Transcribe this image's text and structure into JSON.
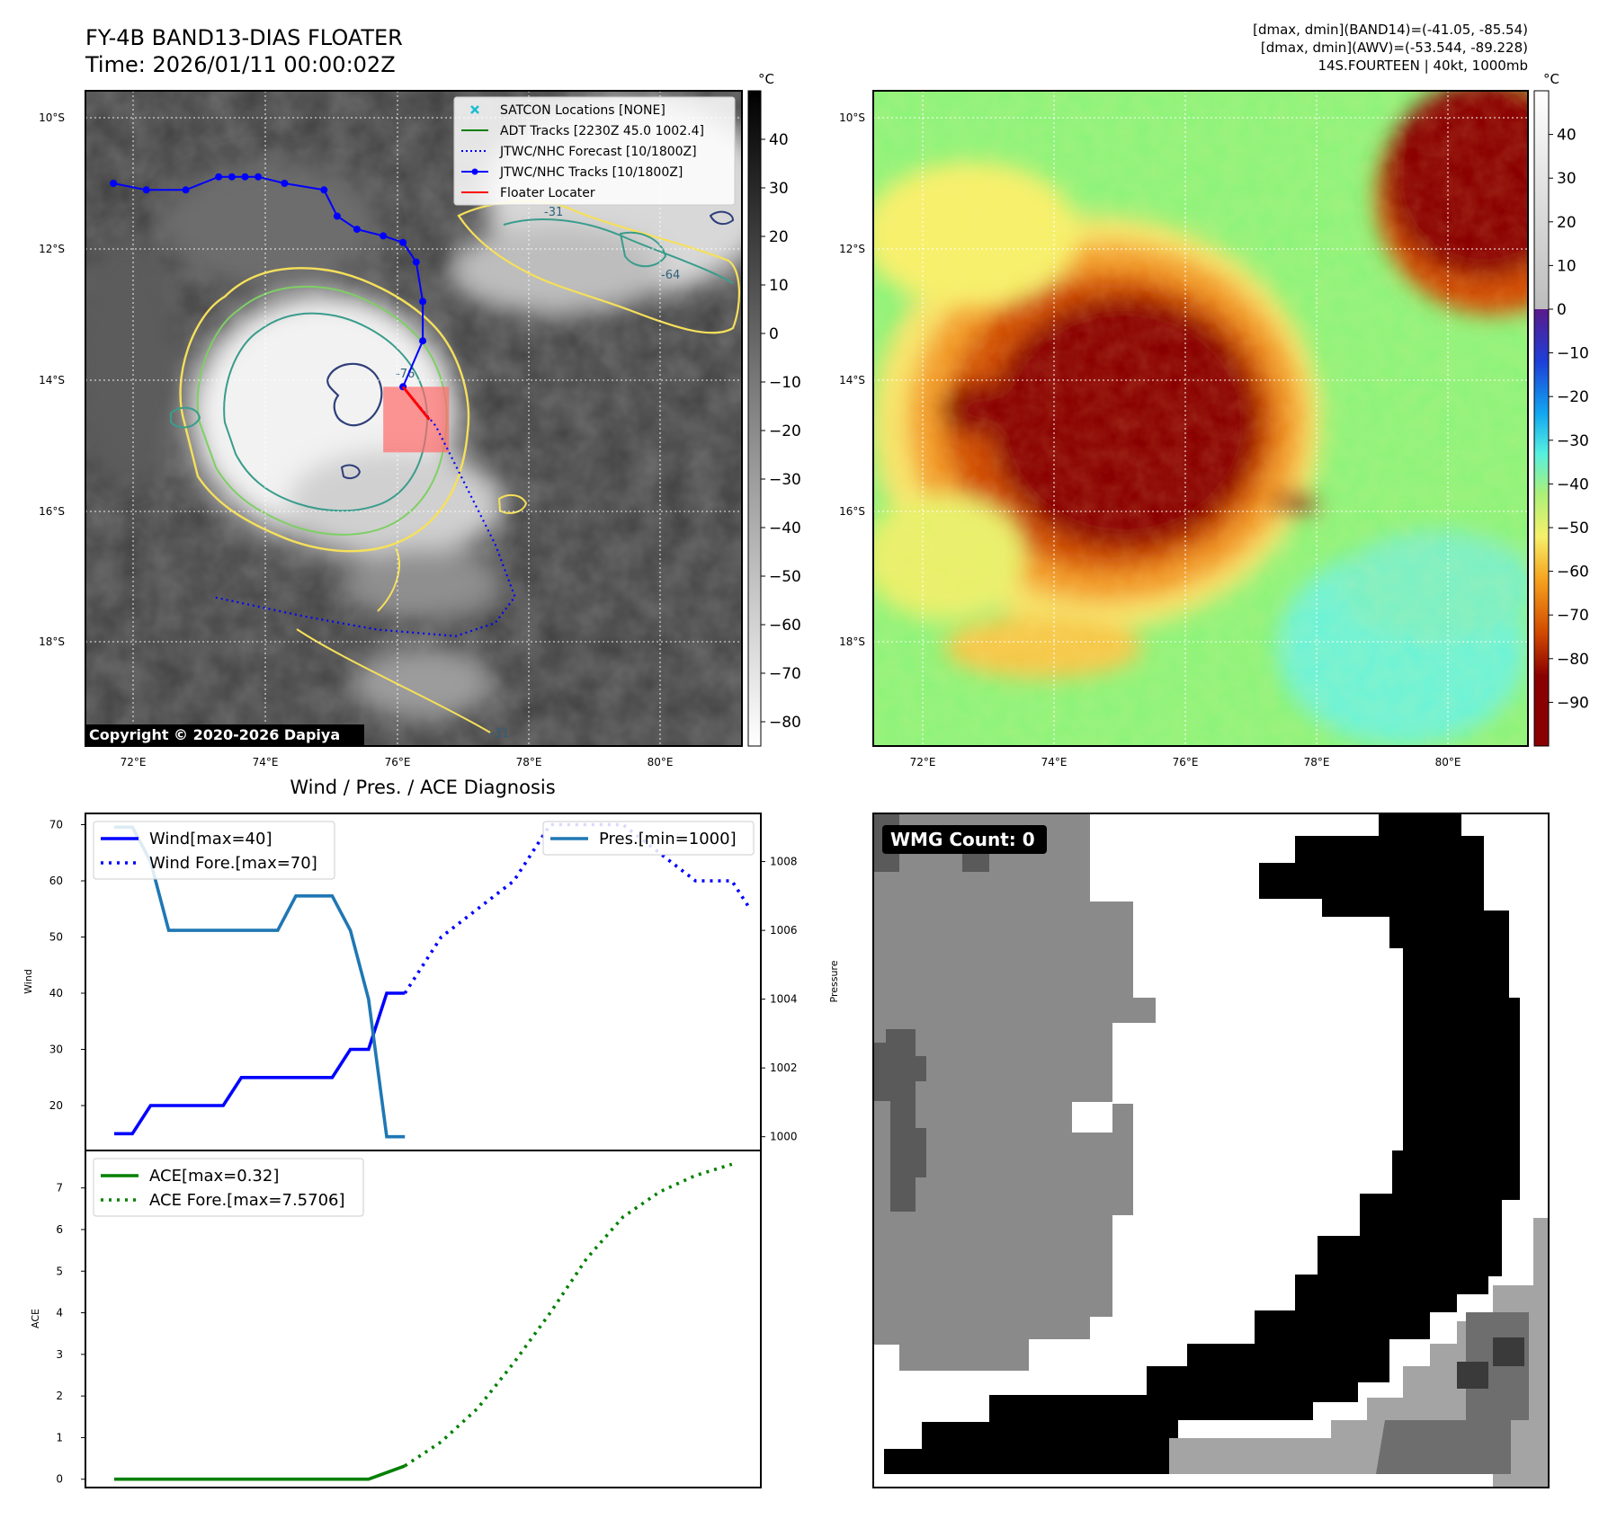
{
  "header": {
    "title_line1": "FY-4B BAND13-DIAS FLOATER",
    "title_line2": "Time: 2026/01/11 00:00:02Z",
    "info_line1": "[dmax, dmin](BAND14)=(-41.05, -85.54)",
    "info_line2": "[dmax, dmin](AWV)=(-53.544, -89.228)",
    "info_line3": "14S.FOURTEEN | 40kt, 1000mb"
  },
  "ir_panel": {
    "lon_labels": [
      "72°E",
      "74°E",
      "76°E",
      "78°E",
      "80°E"
    ],
    "lat_labels": [
      "10°S",
      "12°S",
      "14°S",
      "16°S",
      "18°S"
    ],
    "copyright": "Copyright © 2020-2026 Dapiya",
    "contour_labels": [
      "-31",
      "-64",
      "-76"
    ],
    "legend": [
      {
        "label": "SATCON Locations [NONE]",
        "color": "#17becf",
        "style": "marker-x"
      },
      {
        "label": "ADT Tracks [2230Z 45.0 1002.4]",
        "color": "#008000",
        "style": "line"
      },
      {
        "label": "JTWC/NHC Forecast [10/1800Z]",
        "color": "#0000ff",
        "style": "dotted"
      },
      {
        "label": "JTWC/NHC Tracks [10/1800Z]",
        "color": "#0000ff",
        "style": "line-marker"
      },
      {
        "label": "Floater Locater",
        "color": "#ff0000",
        "style": "line"
      }
    ],
    "track_points": [
      [
        71.7,
        -11.0
      ],
      [
        72.2,
        -11.1
      ],
      [
        72.8,
        -11.1
      ],
      [
        73.3,
        -10.9
      ],
      [
        73.5,
        -10.9
      ],
      [
        73.7,
        -10.9
      ],
      [
        73.9,
        -10.9
      ],
      [
        74.3,
        -11.0
      ],
      [
        74.9,
        -11.1
      ],
      [
        75.1,
        -11.5
      ],
      [
        75.4,
        -11.7
      ],
      [
        75.8,
        -11.8
      ],
      [
        76.1,
        -11.9
      ],
      [
        76.3,
        -12.2
      ],
      [
        76.4,
        -12.8
      ],
      [
        76.4,
        -13.4
      ],
      [
        76.1,
        -14.1
      ]
    ],
    "forecast_points": [
      [
        76.1,
        -14.1
      ],
      [
        76.6,
        -14.7
      ],
      [
        76.9,
        -15.3
      ],
      [
        77.2,
        -15.9
      ],
      [
        77.5,
        -16.5
      ],
      [
        77.8,
        -17.3
      ],
      [
        77.5,
        -17.7
      ],
      [
        76.9,
        -17.9
      ],
      [
        75.7,
        -17.8
      ],
      [
        74.6,
        -17.6
      ],
      [
        73.2,
        -17.3
      ]
    ],
    "floater_segment": [
      [
        76.1,
        -14.1
      ],
      [
        76.5,
        -14.6
      ]
    ],
    "floater_box": {
      "lon": [
        75.8,
        76.8
      ],
      "lat": [
        -14.1,
        -15.1
      ]
    },
    "colorbar": {
      "unit": "°C",
      "ticks": [
        40,
        30,
        20,
        10,
        0,
        -10,
        -20,
        -30,
        -40,
        -50,
        -60,
        -70,
        -80
      ]
    }
  },
  "awv_panel": {
    "lon_labels": [
      "72°E",
      "74°E",
      "76°E",
      "78°E",
      "80°E"
    ],
    "lat_labels": [
      "10°S",
      "12°S",
      "14°S",
      "16°S",
      "18°S"
    ],
    "colorbar": {
      "unit": "°C",
      "ticks": [
        40,
        30,
        20,
        10,
        0,
        -10,
        -20,
        -30,
        -40,
        -50,
        -60,
        -70,
        -80,
        -90
      ]
    }
  },
  "wmg_panel": {
    "count_label": "WMG Count: 0"
  },
  "chart_data": [
    {
      "type": "line",
      "title": "Wind / Pres. / ACE Diagnosis",
      "ylabel": "Wind",
      "ylabel_right": "Pressure",
      "ylim": [
        12,
        72
      ],
      "ylim_right": [
        999.6,
        1009.4
      ],
      "yticks": [
        20,
        30,
        40,
        50,
        60,
        70
      ],
      "yticks_right": [
        1000,
        1002,
        1004,
        1006,
        1008
      ],
      "x_count": 18,
      "series": [
        {
          "name": "Wind[max=40]",
          "color": "#0000ff",
          "style": "solid",
          "axis": "left",
          "x": [
            0,
            0.5,
            1,
            2,
            3,
            3.5,
            4,
            5,
            6,
            6.5,
            7,
            7.5,
            8
          ],
          "values": [
            15,
            15,
            20,
            20,
            20,
            25,
            25,
            25,
            25,
            30,
            30,
            40,
            40
          ]
        },
        {
          "name": "Wind Fore.[max=70]",
          "color": "#0000ff",
          "style": "dotted",
          "axis": "left",
          "x": [
            8,
            9,
            10,
            11,
            12,
            13,
            14,
            15,
            16,
            17,
            17.5
          ],
          "values": [
            40,
            50,
            55,
            60,
            70,
            70,
            70,
            65,
            60,
            60,
            55
          ]
        },
        {
          "name": "Pres.[min=1000]",
          "color": "#1f77b4",
          "style": "solid",
          "axis": "right",
          "x": [
            0,
            0.5,
            1,
            1.5,
            2,
            3,
            4,
            4.5,
            5,
            5.5,
            6,
            6.5,
            7,
            7.5,
            8
          ],
          "values": [
            1009,
            1009,
            1008,
            1006,
            1006,
            1006,
            1006,
            1006,
            1007,
            1007,
            1007,
            1006,
            1004,
            1000,
            1000
          ]
        }
      ],
      "legend_left_position": "upper-left",
      "legend_right_position": "upper-right"
    },
    {
      "type": "line",
      "ylabel": "ACE",
      "ylim": [
        -0.2,
        7.9
      ],
      "yticks": [
        0,
        1,
        2,
        3,
        4,
        5,
        6,
        7
      ],
      "x_count": 18,
      "series": [
        {
          "name": "ACE[max=0.32]",
          "color": "#008000",
          "style": "solid",
          "x": [
            0,
            7,
            8
          ],
          "values": [
            0,
            0,
            0.32
          ]
        },
        {
          "name": "ACE Fore.[max=7.5706]",
          "color": "#008000",
          "style": "dotted",
          "x": [
            8,
            9,
            10,
            11,
            12,
            13,
            14,
            15,
            16,
            17
          ],
          "values": [
            0.32,
            0.9,
            1.7,
            2.8,
            4.0,
            5.3,
            6.3,
            6.9,
            7.3,
            7.57
          ]
        }
      ],
      "legend_position": "upper-left"
    }
  ]
}
